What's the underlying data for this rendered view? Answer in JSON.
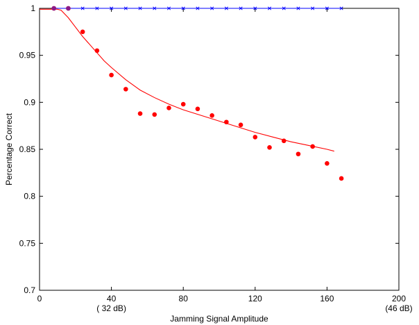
{
  "chart_data": {
    "type": "line",
    "xlabel": "Jamming Signal Amplitude",
    "ylabel": "Percentage Correct",
    "xlim": [
      0,
      200
    ],
    "ylim": [
      0.7,
      1.0
    ],
    "grid": false,
    "x_ticks": [
      0,
      40,
      80,
      120,
      160,
      200
    ],
    "x_tick_labels": [
      "0",
      "40",
      "80",
      "120",
      "160",
      "200"
    ],
    "x_sub_labels": [
      {
        "x": 40,
        "text": "( 32 dB)"
      },
      {
        "x": 200,
        "text": "(46 dB)"
      }
    ],
    "y_ticks": [
      0.7,
      0.75,
      0.8,
      0.85,
      0.9,
      0.95,
      1.0
    ],
    "y_tick_labels": [
      "0.7",
      "0.75",
      "0.8",
      "0.85",
      "0.9",
      "0.95",
      "1"
    ],
    "series": [
      {
        "color": "#0000ff",
        "style": "line-x-markers",
        "x": [
          8,
          16,
          24,
          32,
          40,
          48,
          56,
          64,
          72,
          80,
          88,
          96,
          104,
          112,
          120,
          128,
          136,
          144,
          152,
          160,
          168
        ],
        "y": [
          1,
          1,
          1,
          1,
          1,
          1,
          1,
          1,
          1,
          1,
          1,
          1,
          1,
          1,
          1,
          1,
          1,
          1,
          1,
          1,
          1
        ]
      },
      {
        "color": "#ff0000",
        "style": "dots",
        "x": [
          8,
          16,
          24,
          32,
          40,
          48,
          56,
          64,
          72,
          80,
          88,
          96,
          104,
          112,
          120,
          128,
          136,
          144,
          152,
          160,
          168
        ],
        "y": [
          1.0,
          1.0,
          0.975,
          0.955,
          0.929,
          0.914,
          0.888,
          0.887,
          0.894,
          0.898,
          0.893,
          0.886,
          0.879,
          0.876,
          0.863,
          0.852,
          0.859,
          0.845,
          0.853,
          0.835,
          0.819
        ]
      },
      {
        "color": "#ff0000",
        "style": "fit-curve",
        "x": [
          0,
          10,
          12,
          16,
          20,
          24,
          30,
          36,
          40,
          48,
          56,
          64,
          72,
          80,
          90,
          100,
          110,
          120,
          130,
          140,
          150,
          160,
          164
        ],
        "y": [
          0.999,
          0.999,
          0.998,
          0.99,
          0.98,
          0.97,
          0.957,
          0.944,
          0.937,
          0.924,
          0.913,
          0.905,
          0.898,
          0.892,
          0.886,
          0.88,
          0.874,
          0.868,
          0.863,
          0.858,
          0.854,
          0.85,
          0.848
        ]
      }
    ]
  }
}
